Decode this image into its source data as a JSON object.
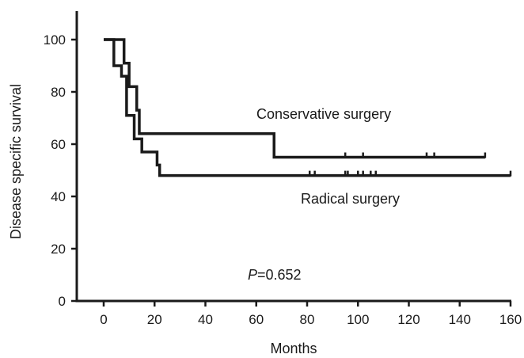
{
  "chart_data": {
    "type": "line",
    "title": "",
    "xlabel": "Months",
    "ylabel": "Disease specific survival",
    "xlim": [
      -10,
      160
    ],
    "ylim": [
      0,
      110
    ],
    "xticks": [
      0,
      20,
      40,
      60,
      80,
      100,
      120,
      140,
      160
    ],
    "yticks": [
      0,
      20,
      40,
      60,
      80,
      100
    ],
    "grid": false,
    "series": [
      {
        "name": "Conservative surgery",
        "step_points": [
          [
            0,
            100
          ],
          [
            8,
            100
          ],
          [
            8,
            91
          ],
          [
            10,
            91
          ],
          [
            10,
            82
          ],
          [
            13,
            82
          ],
          [
            13,
            73
          ],
          [
            14,
            73
          ],
          [
            14,
            64
          ],
          [
            67,
            64
          ],
          [
            67,
            55
          ],
          [
            150,
            55
          ]
        ],
        "censored": [
          95,
          102,
          127,
          130,
          150
        ]
      },
      {
        "name": "Radical surgery",
        "step_points": [
          [
            0,
            100
          ],
          [
            4,
            100
          ],
          [
            4,
            90
          ],
          [
            7,
            90
          ],
          [
            7,
            86
          ],
          [
            9,
            86
          ],
          [
            9,
            71
          ],
          [
            12,
            71
          ],
          [
            12,
            62
          ],
          [
            15,
            62
          ],
          [
            15,
            57
          ],
          [
            21,
            57
          ],
          [
            21,
            52
          ],
          [
            22,
            52
          ],
          [
            22,
            48
          ],
          [
            160,
            48
          ]
        ],
        "censored": [
          81,
          83,
          95,
          96,
          100,
          102,
          105,
          107,
          160
        ]
      }
    ],
    "annotations": [
      {
        "prefix": "P",
        "text": "=0.652"
      }
    ],
    "colors": {
      "line": "#1a1a1a",
      "text": "#1a1a1a"
    }
  }
}
